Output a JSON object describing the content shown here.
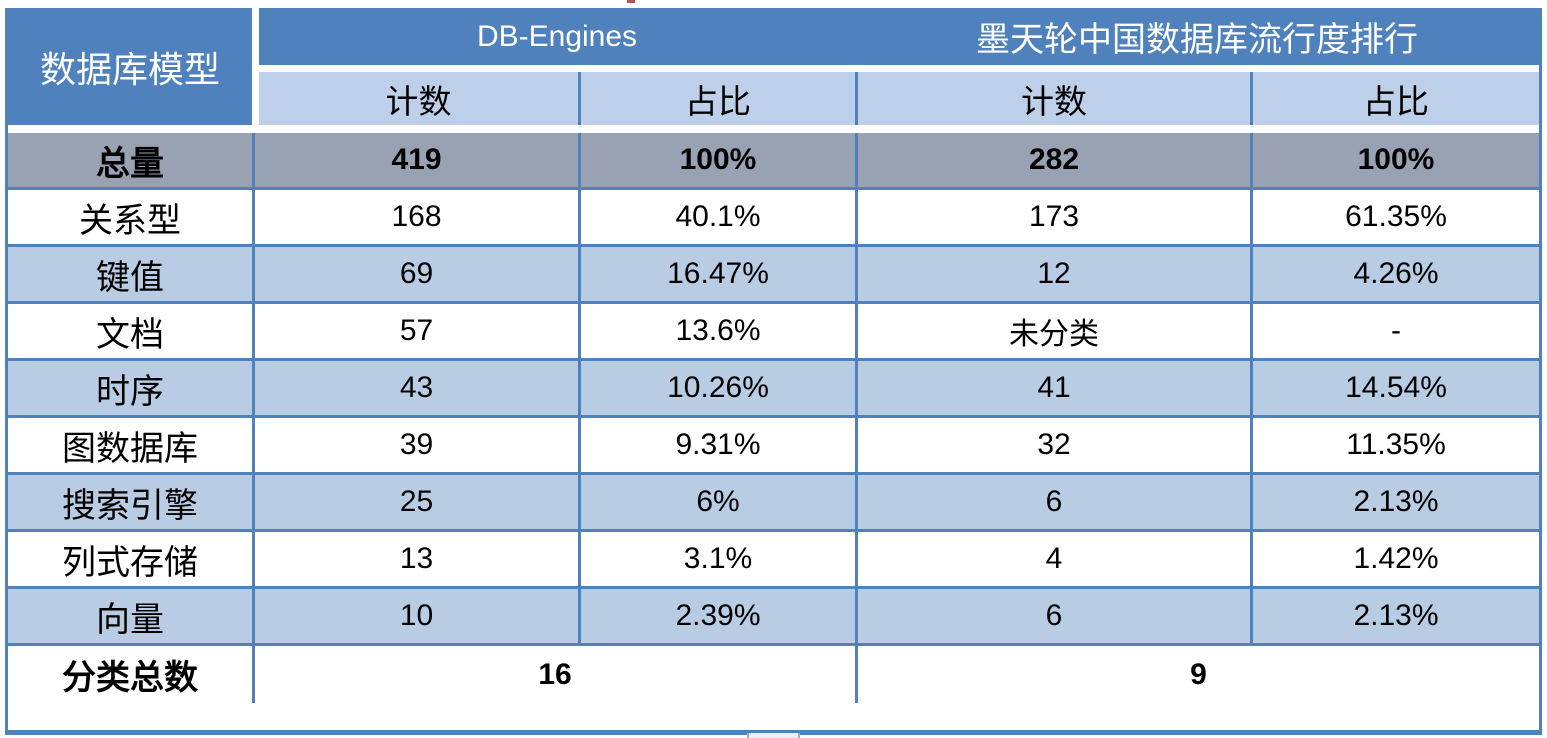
{
  "table": {
    "corner_header": "数据库模型",
    "groups": [
      {
        "label": "DB-Engines"
      },
      {
        "label": "墨天轮中国数据库流行度排行"
      }
    ],
    "sub_headers": [
      "计数",
      "占比",
      "计数",
      "占比"
    ],
    "rows": [
      {
        "label": "总量",
        "cells": [
          "419",
          "100%",
          "282",
          "100%"
        ]
      },
      {
        "label": "关系型",
        "cells": [
          "168",
          "40.1%",
          "173",
          "61.35%"
        ]
      },
      {
        "label": "键值",
        "cells": [
          "69",
          "16.47%",
          "12",
          "4.26%"
        ]
      },
      {
        "label": "文档",
        "cells": [
          "57",
          "13.6%",
          "未分类",
          "-"
        ]
      },
      {
        "label": "时序",
        "cells": [
          "43",
          "10.26%",
          "41",
          "14.54%"
        ]
      },
      {
        "label": "图数据库",
        "cells": [
          "39",
          "9.31%",
          "32",
          "11.35%"
        ]
      },
      {
        "label": "搜索引擎",
        "cells": [
          "25",
          "6%",
          "6",
          "2.13%"
        ]
      },
      {
        "label": "列式存储",
        "cells": [
          "13",
          "3.1%",
          "4",
          "1.42%"
        ]
      },
      {
        "label": "向量",
        "cells": [
          "10",
          "2.39%",
          "6",
          "2.13%"
        ]
      }
    ],
    "footer": {
      "label": "分类总数",
      "left_value": "16",
      "right_value": "9"
    }
  },
  "colors": {
    "header_blue": "#4f81bd",
    "border_blue": "#4f81bd",
    "subheader_blue": "#bdcfe9",
    "band_blue": "#b8cce4",
    "total_gray": "#98a2b3",
    "text_light": "#ffffff",
    "text_dark": "#000000"
  },
  "chart_data": {
    "type": "table",
    "title": "数据库模型分类对比：DB-Engines vs 墨天轮中国数据库流行度排行",
    "column_groups": [
      "DB-Engines",
      "墨天轮中国数据库流行度排行"
    ],
    "columns": [
      "数据库模型",
      "DB-Engines 计数",
      "DB-Engines 占比",
      "墨天轮 计数",
      "墨天轮 占比"
    ],
    "rows": [
      [
        "总量",
        419,
        "100%",
        282,
        "100%"
      ],
      [
        "关系型",
        168,
        "40.1%",
        173,
        "61.35%"
      ],
      [
        "键值",
        69,
        "16.47%",
        12,
        "4.26%"
      ],
      [
        "文档",
        57,
        "13.6%",
        "未分类",
        "-"
      ],
      [
        "时序",
        43,
        "10.26%",
        41,
        "14.54%"
      ],
      [
        "图数据库",
        39,
        "9.31%",
        32,
        "11.35%"
      ],
      [
        "搜索引擎",
        25,
        "6%",
        6,
        "2.13%"
      ],
      [
        "列式存储",
        13,
        "3.1%",
        4,
        "1.42%"
      ],
      [
        "向量",
        10,
        "2.39%",
        6,
        "2.13%"
      ],
      [
        "分类总数",
        16,
        "",
        9,
        ""
      ]
    ]
  }
}
